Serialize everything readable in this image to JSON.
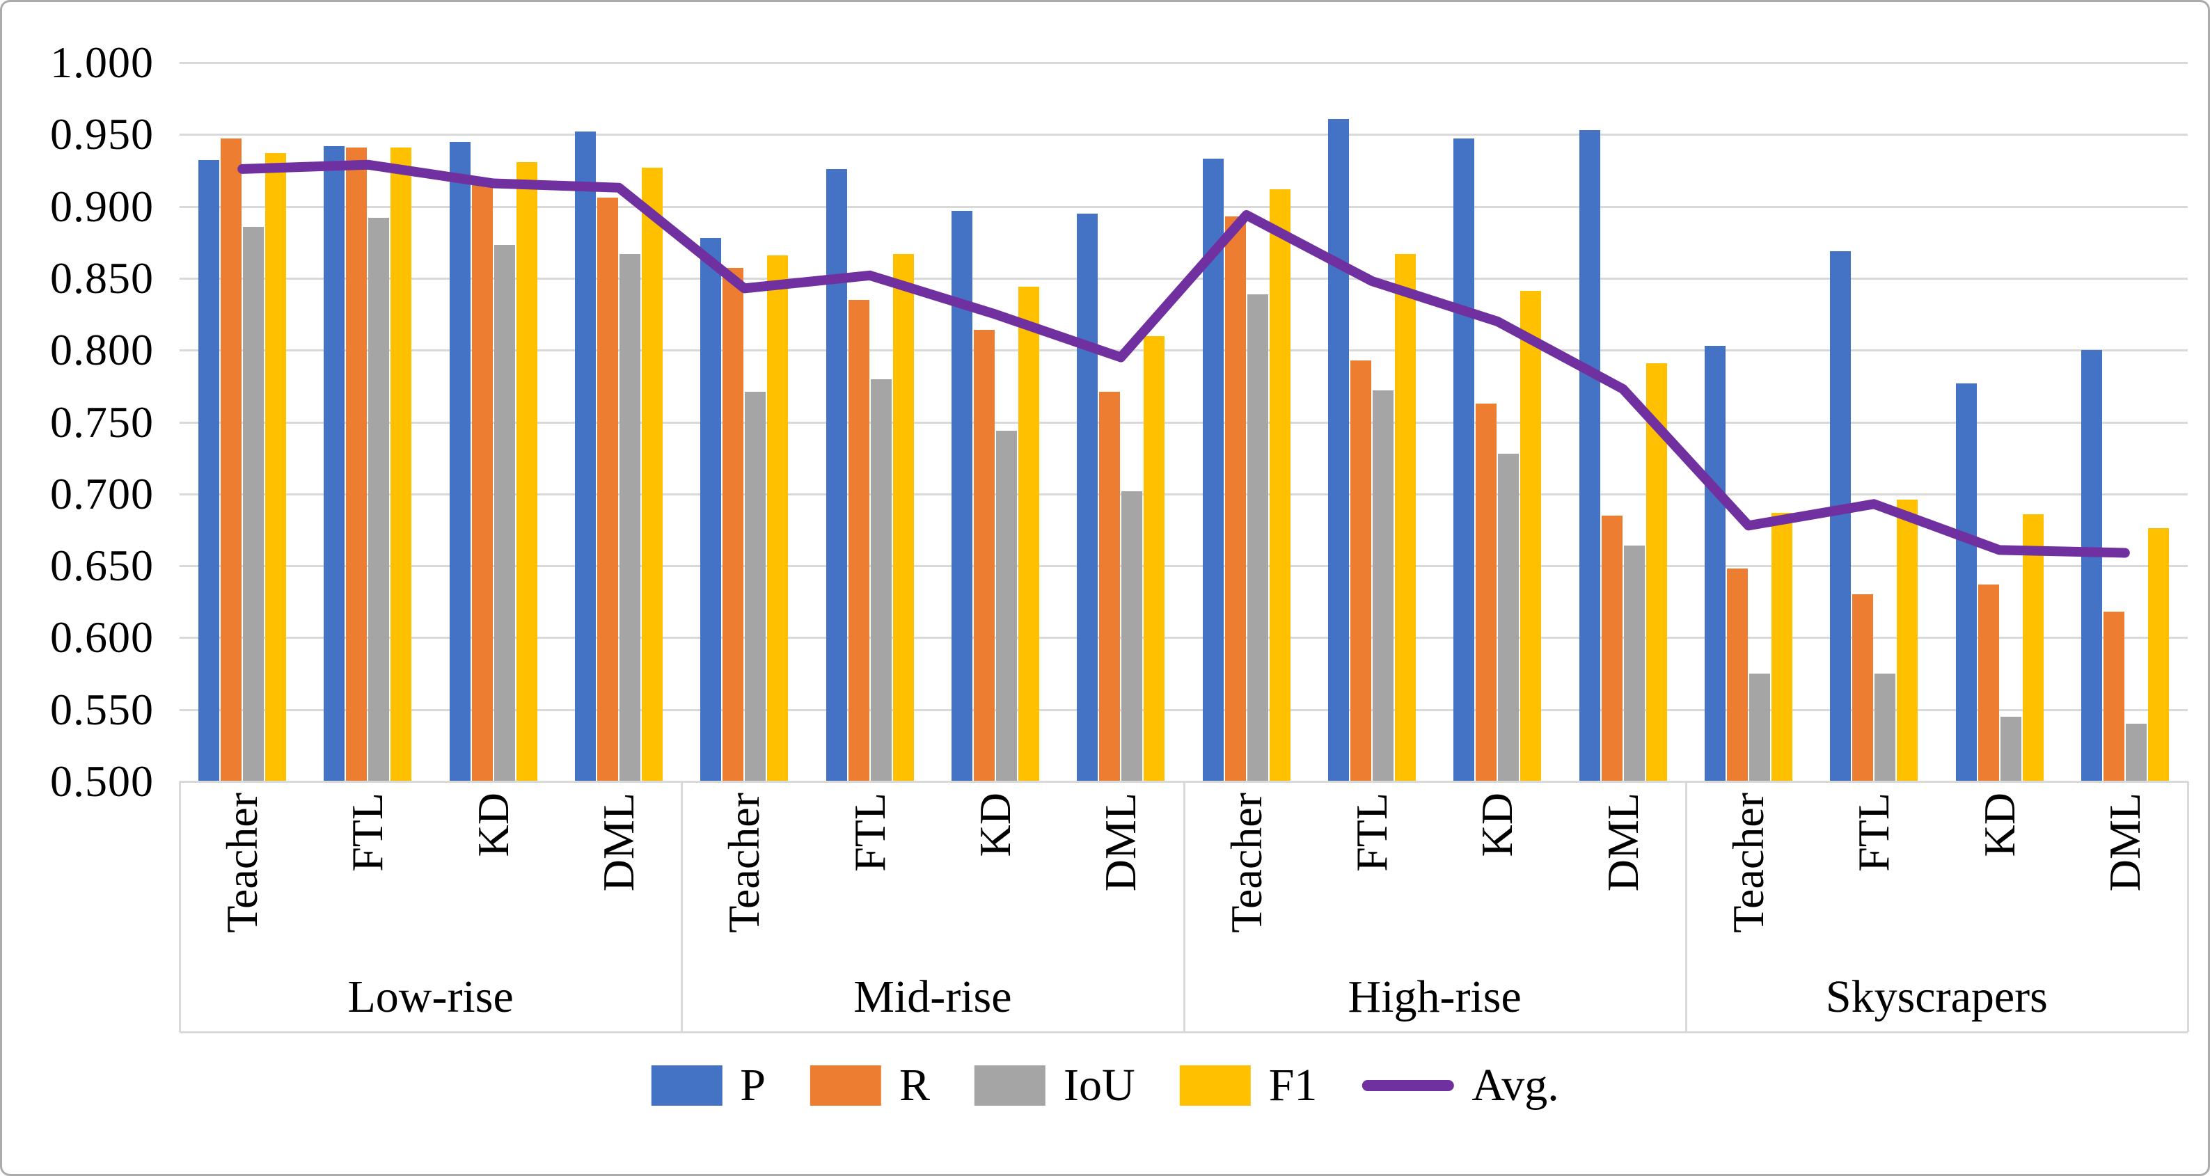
{
  "figure": {
    "background": "#ffffff",
    "border_color": "#ababab",
    "gridline_color": "#d9d9d9"
  },
  "chart_data": {
    "type": "bar",
    "subtype": "grouped bars with overlay line",
    "title": "",
    "xlabel": "",
    "ylabel": "",
    "grid": true,
    "legend_position": "bottom",
    "ylim": [
      0.5,
      1.0
    ],
    "y_step": 0.05,
    "y_tick_labels": [
      "1.000",
      "0.950",
      "0.900",
      "0.850",
      "0.800",
      "0.750",
      "0.700",
      "0.650",
      "0.600",
      "0.550",
      "0.500"
    ],
    "categories": [
      "Low-rise",
      "Mid-rise",
      "High-rise",
      "Skyscrapers"
    ],
    "groups": [
      "Teacher",
      "FTL",
      "KD",
      "DML"
    ],
    "series": [
      {
        "name": "P",
        "kind": "bar",
        "color": "#4472c4",
        "values": [
          0.932,
          0.942,
          0.945,
          0.952,
          0.878,
          0.926,
          0.897,
          0.895,
          0.933,
          0.961,
          0.947,
          0.953,
          0.803,
          0.869,
          0.777,
          0.8
        ]
      },
      {
        "name": "R",
        "kind": "bar",
        "color": "#ed7d31",
        "values": [
          0.947,
          0.941,
          0.915,
          0.906,
          0.857,
          0.835,
          0.814,
          0.771,
          0.893,
          0.793,
          0.763,
          0.685,
          0.648,
          0.63,
          0.637,
          0.618
        ]
      },
      {
        "name": "IoU",
        "kind": "bar",
        "color": "#a5a5a5",
        "values": [
          0.886,
          0.892,
          0.873,
          0.867,
          0.771,
          0.78,
          0.744,
          0.702,
          0.839,
          0.772,
          0.728,
          0.664,
          0.575,
          0.575,
          0.545,
          0.54
        ]
      },
      {
        "name": "F1",
        "kind": "bar",
        "color": "#ffc000",
        "values": [
          0.937,
          0.941,
          0.931,
          0.927,
          0.866,
          0.867,
          0.844,
          0.81,
          0.912,
          0.867,
          0.841,
          0.791,
          0.687,
          0.696,
          0.686,
          0.676
        ]
      },
      {
        "name": "Avg.",
        "kind": "line",
        "color": "#7030a0",
        "values": [
          0.926,
          0.929,
          0.916,
          0.913,
          0.843,
          0.852,
          0.825,
          0.795,
          0.894,
          0.848,
          0.82,
          0.773,
          0.678,
          0.693,
          0.661,
          0.659
        ]
      }
    ]
  }
}
